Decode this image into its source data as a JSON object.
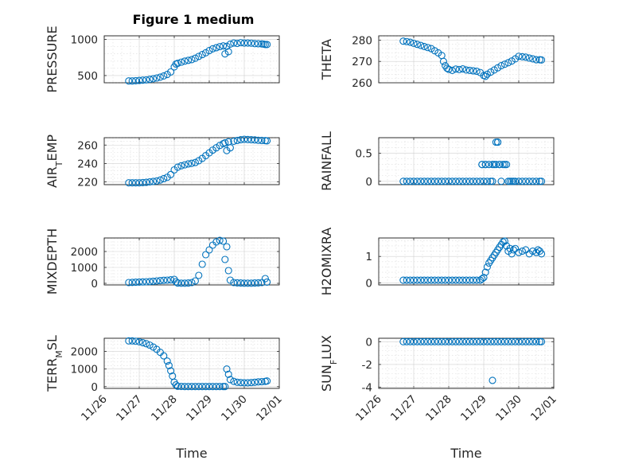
{
  "figure_title": "Figure 1 medium",
  "colors": {
    "marker": "#0072BD",
    "axis": "#262626",
    "grid": "#d0d0d0"
  },
  "chart_data": [
    {
      "type": "scatter",
      "title": "Figure 1 medium",
      "ylabel": "PRESSURE",
      "xlabel": "",
      "marker": "circle",
      "ylim": [
        400,
        1050
      ],
      "yticks": [
        500,
        1000
      ],
      "xlim": [
        0,
        5
      ],
      "xticks": [
        0,
        1,
        2,
        3,
        4,
        5
      ],
      "xticklabels": [
        "11/26",
        "11/27",
        "11/28",
        "11/29",
        "11/30",
        "12/01"
      ],
      "grid": true,
      "minor_grid": true,
      "series": [
        {
          "x": [
            0.7,
            0.8,
            0.9,
            1.0,
            1.1,
            1.2,
            1.3,
            1.4,
            1.5,
            1.6,
            1.7,
            1.8,
            1.9,
            2.0,
            2.05,
            2.1,
            2.2,
            2.3,
            2.4,
            2.5,
            2.6,
            2.7,
            2.8,
            2.9,
            3.0,
            3.1,
            3.2,
            3.3,
            3.4,
            3.45,
            3.5,
            3.55,
            3.6,
            3.7,
            3.8,
            3.9,
            4.0,
            4.1,
            4.2,
            4.3,
            4.4,
            4.5,
            4.55,
            4.6,
            4.65
          ],
          "y": [
            425,
            425,
            428,
            432,
            436,
            440,
            448,
            456,
            466,
            478,
            494,
            515,
            550,
            620,
            660,
            670,
            685,
            700,
            710,
            720,
            740,
            765,
            790,
            815,
            845,
            870,
            885,
            900,
            910,
            800,
            905,
            830,
            935,
            950,
            945,
            955,
            950,
            950,
            948,
            942,
            940,
            938,
            935,
            930,
            930
          ]
        }
      ]
    },
    {
      "type": "scatter",
      "ylabel": "THETA",
      "xlabel": "",
      "marker": "circle",
      "ylim": [
        260,
        282
      ],
      "yticks": [
        260,
        270,
        280
      ],
      "xlim": [
        0,
        5
      ],
      "xticks": [
        0,
        1,
        2,
        3,
        4,
        5
      ],
      "xticklabels": [
        "11/26",
        "11/27",
        "11/28",
        "11/29",
        "11/30",
        "12/01"
      ],
      "grid": true,
      "minor_grid": true,
      "series": [
        {
          "x": [
            0.7,
            0.8,
            0.9,
            1.0,
            1.1,
            1.2,
            1.3,
            1.4,
            1.5,
            1.6,
            1.7,
            1.8,
            1.85,
            1.9,
            1.95,
            2.0,
            2.1,
            2.2,
            2.3,
            2.4,
            2.5,
            2.6,
            2.7,
            2.8,
            2.9,
            3.0,
            3.05,
            3.1,
            3.2,
            3.3,
            3.4,
            3.5,
            3.6,
            3.7,
            3.8,
            3.9,
            4.0,
            4.1,
            4.2,
            4.3,
            4.4,
            4.5,
            4.6,
            4.65
          ],
          "y": [
            279.5,
            279.3,
            279,
            278.5,
            278,
            277.5,
            277,
            276.5,
            276,
            275,
            274,
            272.8,
            270,
            268,
            266.8,
            266.3,
            265.8,
            266.4,
            266.2,
            266.5,
            266,
            265.8,
            265.6,
            265.4,
            264.8,
            263.4,
            263,
            264,
            265,
            266,
            267,
            268,
            268.7,
            269.4,
            270.2,
            271.2,
            272.4,
            272.2,
            272,
            271.6,
            271.2,
            270.8,
            270.8,
            270.7
          ]
        }
      ]
    },
    {
      "type": "scatter",
      "ylabel": "AIR_TEMP",
      "xlabel": "",
      "marker": "circle",
      "ylim": [
        217,
        268
      ],
      "yticks": [
        220,
        240,
        260
      ],
      "xlim": [
        0,
        5
      ],
      "xticks": [
        0,
        1,
        2,
        3,
        4,
        5
      ],
      "xticklabels": [
        "11/26",
        "11/27",
        "11/28",
        "11/29",
        "11/30",
        "12/01"
      ],
      "grid": true,
      "minor_grid": true,
      "series": [
        {
          "x": [
            0.7,
            0.8,
            0.9,
            1.0,
            1.1,
            1.2,
            1.3,
            1.4,
            1.5,
            1.6,
            1.7,
            1.8,
            1.9,
            2.0,
            2.1,
            2.2,
            2.3,
            2.4,
            2.5,
            2.6,
            2.7,
            2.8,
            2.9,
            3.0,
            3.1,
            3.2,
            3.3,
            3.4,
            3.45,
            3.5,
            3.55,
            3.6,
            3.7,
            3.8,
            3.9,
            4.0,
            4.1,
            4.2,
            4.3,
            4.4,
            4.5,
            4.6,
            4.65
          ],
          "y": [
            219,
            219,
            219,
            219,
            219.2,
            219.5,
            220,
            220.5,
            221,
            222,
            223.5,
            225,
            228,
            233,
            236,
            237.5,
            238.5,
            239.5,
            240.2,
            241,
            243,
            245.5,
            248.5,
            251.5,
            254.5,
            257,
            259.5,
            261.5,
            262.5,
            254,
            263.5,
            257,
            264.2,
            265,
            265.8,
            266.2,
            266,
            265.8,
            265.6,
            265.2,
            265,
            264.8,
            264.6
          ]
        }
      ]
    },
    {
      "type": "scatter",
      "ylabel": "RAINFALL",
      "xlabel": "",
      "marker": "circle",
      "ylim": [
        -0.06,
        0.78
      ],
      "yticks": [
        0,
        0.5
      ],
      "xlim": [
        0,
        5
      ],
      "xticks": [
        0,
        1,
        2,
        3,
        4,
        5
      ],
      "xticklabels": [
        "11/26",
        "11/27",
        "11/28",
        "11/29",
        "11/30",
        "12/01"
      ],
      "grid": true,
      "minor_grid": true,
      "series": [
        {
          "x": [
            0.7,
            0.8,
            0.9,
            1.0,
            1.1,
            1.2,
            1.3,
            1.4,
            1.5,
            1.6,
            1.7,
            1.8,
            1.9,
            2.0,
            2.1,
            2.2,
            2.3,
            2.4,
            2.5,
            2.6,
            2.7,
            2.8,
            2.9,
            2.95,
            3.0,
            3.05,
            3.1,
            3.15,
            3.2,
            3.25,
            3.3,
            3.35,
            3.4,
            3.45,
            3.5,
            3.55,
            3.6,
            3.65,
            3.7,
            3.75,
            3.8,
            3.85,
            3.9,
            4.0,
            4.1,
            4.2,
            4.3,
            4.4,
            4.5,
            4.6,
            4.65,
            3.35,
            3.4,
            3.45,
            3.25,
            2.95,
            3.05
          ],
          "y": [
            0,
            0,
            0,
            0,
            0,
            0,
            0,
            0,
            0,
            0,
            0,
            0,
            0,
            0,
            0,
            0,
            0,
            0,
            0,
            0,
            0,
            0,
            0,
            0.3,
            0,
            0.3,
            0,
            0.3,
            0,
            0,
            0.3,
            0.3,
            0.7,
            0.3,
            0,
            0.3,
            0.3,
            0.3,
            0,
            0,
            0,
            0,
            0,
            0,
            0,
            0,
            0,
            0,
            0,
            0,
            0,
            0.7,
            0.7,
            0.3,
            0.3,
            0.3,
            0.3
          ]
        }
      ]
    },
    {
      "type": "scatter",
      "ylabel": "MIXDEPTH",
      "xlabel": "",
      "marker": "circle",
      "ylim": [
        -100,
        2850
      ],
      "yticks": [
        0,
        1000,
        2000
      ],
      "xlim": [
        0,
        5
      ],
      "xticks": [
        0,
        1,
        2,
        3,
        4,
        5
      ],
      "xticklabels": [
        "11/26",
        "11/27",
        "11/28",
        "11/29",
        "11/30",
        "12/01"
      ],
      "grid": true,
      "minor_grid": true,
      "series": [
        {
          "x": [
            0.7,
            0.8,
            0.9,
            1.0,
            1.1,
            1.2,
            1.3,
            1.4,
            1.5,
            1.6,
            1.7,
            1.8,
            1.9,
            2.0,
            2.05,
            2.1,
            2.2,
            2.3,
            2.4,
            2.5,
            2.6,
            2.7,
            2.8,
            2.9,
            3.0,
            3.1,
            3.2,
            3.3,
            3.4,
            3.45,
            3.5,
            3.55,
            3.6,
            3.7,
            3.8,
            3.9,
            4.0,
            4.1,
            4.2,
            4.3,
            4.4,
            4.5,
            4.6,
            4.65
          ],
          "y": [
            50,
            60,
            70,
            80,
            90,
            100,
            110,
            130,
            150,
            170,
            190,
            200,
            220,
            250,
            100,
            20,
            10,
            10,
            20,
            50,
            150,
            500,
            1200,
            1800,
            2100,
            2400,
            2600,
            2700,
            2650,
            1500,
            2300,
            800,
            200,
            50,
            30,
            20,
            10,
            10,
            10,
            20,
            30,
            50,
            300,
            80
          ]
        }
      ]
    },
    {
      "type": "scatter",
      "ylabel": "H2OMIXRA",
      "xlabel": "",
      "marker": "circle",
      "ylim": [
        -0.08,
        1.7
      ],
      "yticks": [
        0,
        1
      ],
      "xlim": [
        0,
        5
      ],
      "xticks": [
        0,
        1,
        2,
        3,
        4,
        5
      ],
      "xticklabels": [
        "11/26",
        "11/27",
        "11/28",
        "11/29",
        "11/30",
        "12/01"
      ],
      "grid": true,
      "minor_grid": true,
      "series": [
        {
          "x": [
            0.7,
            0.8,
            0.9,
            1.0,
            1.1,
            1.2,
            1.3,
            1.4,
            1.5,
            1.6,
            1.7,
            1.8,
            1.9,
            2.0,
            2.1,
            2.2,
            2.3,
            2.4,
            2.5,
            2.6,
            2.7,
            2.8,
            2.9,
            2.95,
            3.0,
            3.05,
            3.1,
            3.15,
            3.2,
            3.25,
            3.3,
            3.35,
            3.4,
            3.45,
            3.5,
            3.55,
            3.6,
            3.65,
            3.7,
            3.75,
            3.8,
            3.85,
            3.9,
            4.0,
            4.1,
            4.2,
            4.3,
            4.4,
            4.5,
            4.55,
            4.6,
            4.65
          ],
          "y": [
            0.1,
            0.1,
            0.1,
            0.1,
            0.1,
            0.1,
            0.1,
            0.1,
            0.1,
            0.1,
            0.1,
            0.1,
            0.1,
            0.1,
            0.1,
            0.1,
            0.1,
            0.1,
            0.1,
            0.1,
            0.1,
            0.1,
            0.1,
            0.15,
            0.2,
            0.4,
            0.6,
            0.75,
            0.85,
            0.95,
            1.05,
            1.15,
            1.25,
            1.35,
            1.45,
            1.55,
            1.58,
            1.4,
            1.2,
            1.3,
            1.1,
            1.25,
            1.3,
            1.15,
            1.2,
            1.25,
            1.1,
            1.2,
            1.15,
            1.25,
            1.2,
            1.1
          ]
        }
      ]
    },
    {
      "type": "scatter",
      "ylabel": "TERR_MSL",
      "xlabel": "Time",
      "marker": "circle",
      "ylim": [
        -100,
        2750
      ],
      "yticks": [
        0,
        1000,
        2000
      ],
      "xlim": [
        0,
        5
      ],
      "xticks": [
        0,
        1,
        2,
        3,
        4,
        5
      ],
      "xticklabels": [
        "11/26",
        "11/27",
        "11/28",
        "11/29",
        "11/30",
        "12/01"
      ],
      "grid": true,
      "minor_grid": true,
      "series": [
        {
          "x": [
            0.7,
            0.8,
            0.9,
            1.0,
            1.1,
            1.2,
            1.3,
            1.4,
            1.5,
            1.6,
            1.7,
            1.8,
            1.85,
            1.9,
            1.95,
            2.0,
            2.05,
            2.1,
            2.2,
            2.3,
            2.4,
            2.5,
            2.6,
            2.7,
            2.8,
            2.9,
            3.0,
            3.1,
            3.2,
            3.3,
            3.4,
            3.45,
            3.5,
            3.55,
            3.6,
            3.7,
            3.8,
            3.9,
            4.0,
            4.1,
            4.2,
            4.3,
            4.4,
            4.5,
            4.6,
            4.65
          ],
          "y": [
            2600,
            2600,
            2580,
            2550,
            2500,
            2440,
            2360,
            2250,
            2120,
            1950,
            1750,
            1450,
            1200,
            900,
            600,
            250,
            100,
            20,
            10,
            5,
            5,
            5,
            5,
            5,
            5,
            5,
            5,
            5,
            5,
            5,
            5,
            5,
            1000,
            700,
            400,
            300,
            250,
            230,
            220,
            220,
            230,
            250,
            270,
            280,
            300,
            320
          ]
        }
      ]
    },
    {
      "type": "scatter",
      "ylabel": "SUN_FLUX",
      "xlabel": "Time",
      "marker": "circle",
      "ylim": [
        -4.1,
        0.3
      ],
      "yticks": [
        -4,
        -2,
        0
      ],
      "xlim": [
        0,
        5
      ],
      "xticks": [
        0,
        1,
        2,
        3,
        4,
        5
      ],
      "xticklabels": [
        "11/26",
        "11/27",
        "11/28",
        "11/29",
        "11/30",
        "12/01"
      ],
      "grid": true,
      "minor_grid": true,
      "series": [
        {
          "x": [
            0.7,
            0.8,
            0.9,
            1.0,
            1.1,
            1.2,
            1.3,
            1.4,
            1.5,
            1.6,
            1.7,
            1.8,
            1.9,
            2.0,
            2.1,
            2.2,
            2.3,
            2.4,
            2.5,
            2.6,
            2.7,
            2.8,
            2.9,
            3.0,
            3.1,
            3.2,
            3.3,
            3.4,
            3.5,
            3.6,
            3.7,
            3.8,
            3.9,
            4.0,
            4.1,
            4.2,
            4.3,
            4.4,
            4.5,
            4.6,
            4.65,
            3.25
          ],
          "y": [
            0,
            0,
            0,
            0,
            0,
            0,
            0,
            0,
            0,
            0,
            0,
            0,
            0,
            0,
            0,
            0,
            0,
            0,
            0,
            0,
            0,
            0,
            0,
            0,
            0,
            0,
            0,
            0,
            0,
            0,
            0,
            0,
            0,
            0,
            0,
            0,
            0,
            0,
            0,
            0,
            0,
            -3.4
          ]
        }
      ]
    }
  ]
}
